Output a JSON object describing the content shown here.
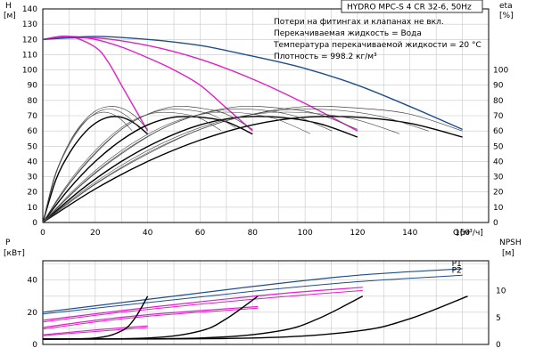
{
  "title": "HYDRO MPC-S 4 CR 32-6, 50Hz",
  "notes": [
    "Потери на фитингах и клапанах не вкл.",
    "Перекачиваемая жидкость = Вода",
    "Температура перекачиваемой жидкости = 20 °C",
    "Плотность = 998.2 кг/м³"
  ],
  "colors": {
    "curve_h": "#1f4e8c",
    "curve_h_single": "#e020c8",
    "curve_eta": "#000000",
    "curve_eta_thin": "#444444",
    "grid": "#c8c8c8",
    "power_pink": "#e020c8",
    "power_blue": "#1f4e8c",
    "npsh": "#000000"
  },
  "chart_data": [
    {
      "type": "line",
      "name": "head",
      "ylabel": "H",
      "yunit": "[м]",
      "y2label": "eta",
      "y2unit": "[%]",
      "xlabel": "Q",
      "xunit": "[м³/ч]",
      "xlim": [
        0,
        170
      ],
      "ylim": [
        0,
        140
      ],
      "xticks": [
        0,
        20,
        40,
        60,
        80,
        100,
        120,
        140,
        160
      ],
      "yticks": [
        0,
        10,
        20,
        30,
        40,
        50,
        60,
        70,
        80,
        90,
        100,
        110,
        120,
        130,
        140
      ],
      "y2ticks": [
        0,
        10,
        20,
        30,
        40,
        50,
        60,
        70,
        80,
        90,
        100
      ],
      "grid": true,
      "series": [
        {
          "role": "h1",
          "x": [
            0,
            10,
            20,
            25,
            30,
            35,
            40
          ],
          "y": [
            120,
            122,
            115,
            105,
            90,
            75,
            60
          ]
        },
        {
          "role": "h2",
          "x": [
            0,
            10,
            20,
            30,
            40,
            50,
            60,
            70,
            80
          ],
          "y": [
            120,
            122,
            120,
            115,
            108,
            100,
            90,
            75,
            60
          ]
        },
        {
          "role": "h3",
          "x": [
            0,
            20,
            40,
            60,
            80,
            100,
            120
          ],
          "y": [
            120,
            121,
            116,
            107,
            94,
            78,
            60
          ]
        },
        {
          "role": "h4",
          "x": [
            0,
            20,
            40,
            60,
            80,
            100,
            120,
            140,
            160
          ],
          "y": [
            120,
            122,
            120,
            116,
            109,
            101,
            90,
            76,
            61
          ]
        },
        {
          "role": "e1",
          "x": [
            0,
            5,
            10,
            15,
            20,
            25,
            30,
            35,
            40
          ],
          "y": [
            0,
            28,
            45,
            57,
            65,
            69,
            69,
            65,
            58
          ]
        },
        {
          "role": "e1t",
          "x": [
            0,
            5,
            10,
            15,
            20,
            25,
            30,
            35,
            40
          ],
          "y": [
            0,
            32,
            52,
            65,
            73,
            76,
            75,
            70,
            61
          ]
        },
        {
          "role": "e2",
          "x": [
            0,
            10,
            20,
            30,
            40,
            50,
            60,
            70,
            80
          ],
          "y": [
            0,
            22,
            40,
            54,
            64,
            69,
            69,
            66,
            58
          ]
        },
        {
          "role": "e2t",
          "x": [
            0,
            10,
            20,
            30,
            40,
            50,
            60,
            70,
            80
          ],
          "y": [
            0,
            25,
            45,
            61,
            71,
            76,
            75,
            71,
            61
          ]
        },
        {
          "role": "e3",
          "x": [
            0,
            15,
            30,
            45,
            60,
            75,
            90,
            105,
            120
          ],
          "y": [
            0,
            22,
            40,
            54,
            64,
            69,
            69,
            65,
            56
          ]
        },
        {
          "role": "e3t",
          "x": [
            0,
            15,
            30,
            45,
            60,
            75,
            90,
            105,
            120
          ],
          "y": [
            0,
            25,
            45,
            61,
            71,
            76,
            75,
            71,
            61
          ]
        },
        {
          "role": "e4",
          "x": [
            0,
            20,
            40,
            60,
            80,
            100,
            120,
            140,
            160
          ],
          "y": [
            0,
            22,
            40,
            54,
            64,
            69,
            69,
            65,
            56
          ]
        },
        {
          "role": "e4t",
          "x": [
            0,
            20,
            40,
            60,
            80,
            100,
            120,
            140,
            160
          ],
          "y": [
            0,
            25,
            45,
            61,
            71,
            76,
            75,
            71,
            60
          ]
        }
      ]
    },
    {
      "type": "line",
      "name": "power",
      "ylabel": "P",
      "yunit": "[кВт]",
      "y2label": "NPSH",
      "y2unit": "[м]",
      "xlim": [
        0,
        170
      ],
      "ylim": [
        0,
        52
      ],
      "y2lim": [
        0,
        15.6
      ],
      "yticks": [
        0,
        20,
        40
      ],
      "y2ticks": [
        0,
        5,
        10
      ],
      "grid": true,
      "series": [
        {
          "name": "P1",
          "role": "p1",
          "x": [
            0,
            40,
            80,
            120,
            160
          ],
          "y": [
            20,
            28,
            36,
            43,
            47
          ]
        },
        {
          "name": "P2",
          "role": "p2",
          "x": [
            0,
            40,
            80,
            120,
            160
          ],
          "y": [
            19,
            26,
            33,
            39,
            43
          ]
        },
        {
          "role": "p3a",
          "x": [
            0,
            30,
            60,
            90,
            122
          ],
          "y": [
            15,
            21,
            26.5,
            31.5,
            35.5
          ]
        },
        {
          "role": "p3b",
          "x": [
            0,
            30,
            60,
            90,
            122
          ],
          "y": [
            14,
            20,
            25,
            29.5,
            33.5
          ]
        },
        {
          "role": "p4a",
          "x": [
            0,
            20,
            40,
            60,
            82
          ],
          "y": [
            10.5,
            15,
            18.5,
            21,
            23.5
          ]
        },
        {
          "role": "p4b",
          "x": [
            0,
            20,
            40,
            60,
            82
          ],
          "y": [
            9.5,
            14,
            17.5,
            20,
            22.5
          ]
        },
        {
          "role": "p5a",
          "x": [
            0,
            20,
            40
          ],
          "y": [
            6,
            9,
            11.5
          ]
        },
        {
          "role": "p5b",
          "x": [
            0,
            20,
            40
          ],
          "y": [
            5.5,
            8,
            10.5
          ]
        },
        {
          "role": "n1",
          "axis": "y2",
          "x": [
            0,
            20,
            30,
            35,
            40
          ],
          "y": [
            1,
            1.2,
            2.5,
            4.8,
            9
          ]
        },
        {
          "role": "n2",
          "axis": "y2",
          "x": [
            0,
            40,
            60,
            70,
            82
          ],
          "y": [
            1,
            1.2,
            2.5,
            4.8,
            9
          ]
        },
        {
          "role": "n3",
          "axis": "y2",
          "x": [
            0,
            60,
            90,
            105,
            122
          ],
          "y": [
            1,
            1.2,
            2.5,
            4.8,
            9
          ]
        },
        {
          "role": "n4",
          "axis": "y2",
          "x": [
            0,
            80,
            120,
            140,
            162
          ],
          "y": [
            1,
            1.2,
            2.5,
            4.8,
            9
          ]
        }
      ]
    }
  ]
}
